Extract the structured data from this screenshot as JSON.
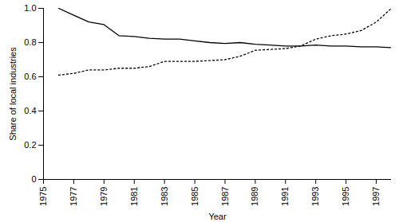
{
  "chart_data": {
    "type": "line",
    "x_label": "Year",
    "y_label": "Share of local industries",
    "x": [
      1976,
      1977,
      1978,
      1979,
      1980,
      1981,
      1982,
      1983,
      1984,
      1985,
      1986,
      1987,
      1988,
      1989,
      1990,
      1991,
      1992,
      1993,
      1994,
      1995,
      1996,
      1997,
      1998
    ],
    "series": [
      {
        "color": "#000000",
        "line_style": "solid",
        "values": [
          1.0,
          0.96,
          0.92,
          0.905,
          0.84,
          0.835,
          0.825,
          0.82,
          0.82,
          0.81,
          0.8,
          0.795,
          0.8,
          0.79,
          0.785,
          0.78,
          0.78,
          0.785,
          0.78,
          0.78,
          0.775,
          0.775,
          0.77
        ]
      },
      {
        "color": "#000000",
        "line_style": "dotted",
        "values": [
          0.61,
          0.62,
          0.64,
          0.64,
          0.65,
          0.65,
          0.66,
          0.69,
          0.69,
          0.69,
          0.695,
          0.7,
          0.72,
          0.755,
          0.76,
          0.765,
          0.78,
          0.82,
          0.84,
          0.85,
          0.87,
          0.92,
          1.0
        ]
      }
    ],
    "xlim": [
      1975,
      1998
    ],
    "xticks": [
      1975,
      1977,
      1979,
      1981,
      1983,
      1985,
      1987,
      1989,
      1991,
      1993,
      1995,
      1997
    ],
    "ylim": [
      0,
      1
    ],
    "yticks": [
      0,
      0.2,
      0.4,
      0.6,
      0.8,
      {
        "value": 1,
        "label": "1.0"
      }
    ],
    "grid": false
  }
}
